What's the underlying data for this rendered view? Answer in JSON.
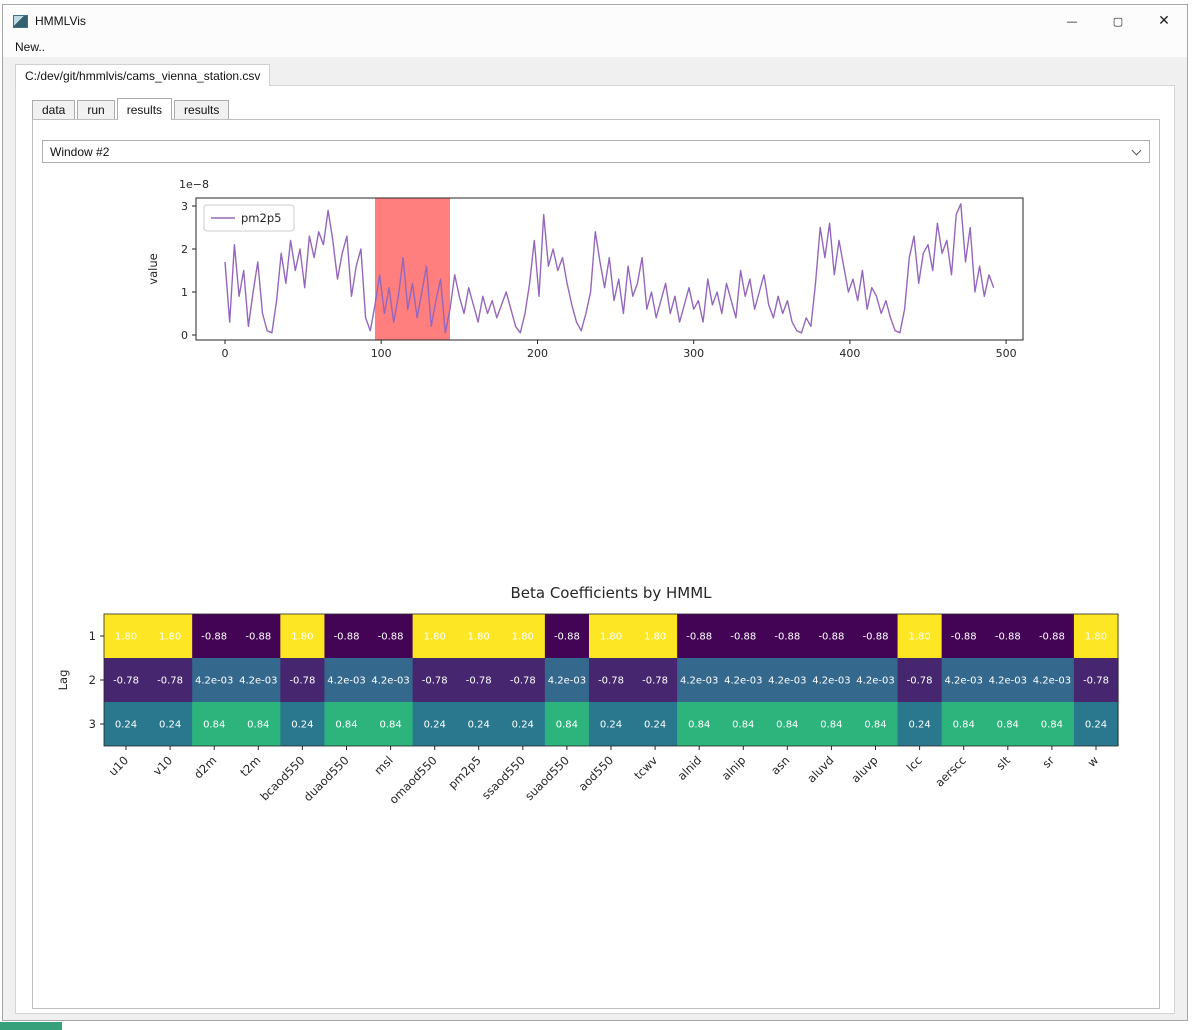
{
  "window": {
    "title": "HMMLVis",
    "controls": {
      "minimize": "—",
      "maximize": "▢",
      "close": "✕"
    }
  },
  "menu": {
    "items": [
      {
        "label": "New.."
      }
    ]
  },
  "file_tabs": [
    {
      "label": "C:/dev/git/hmmlvis/cams_vienna_station.csv",
      "active": true
    }
  ],
  "subtabs": [
    {
      "label": "data",
      "active": false
    },
    {
      "label": "run",
      "active": false
    },
    {
      "label": "results",
      "active": true
    },
    {
      "label": "results",
      "active": false
    }
  ],
  "window_selector": {
    "value": "Window #2"
  },
  "chart_data": [
    {
      "type": "line",
      "title": "",
      "xlabel": "",
      "ylabel": "value",
      "y_offset_label": "1e−8",
      "x_ticks": [
        0,
        100,
        200,
        300,
        400,
        500
      ],
      "y_ticks": [
        0,
        1,
        2,
        3
      ],
      "xlim": [
        -24,
        514
      ],
      "ylim": [
        -0.12,
        3.19
      ],
      "grid": false,
      "legend_position": "upper left",
      "highlight_span": {
        "x0": 96,
        "x1": 144,
        "color": "#ff0000",
        "opacity": 0.5
      },
      "series": [
        {
          "name": "pm2p5",
          "color": "#9467bd",
          "x_start": 0,
          "x_step": 3,
          "values": [
            1.7,
            0.3,
            2.1,
            0.9,
            1.5,
            0.2,
            1.0,
            1.7,
            0.5,
            0.1,
            0.05,
            0.8,
            1.9,
            1.2,
            2.2,
            1.5,
            2.0,
            1.1,
            2.3,
            1.8,
            2.4,
            2.1,
            2.9,
            2.2,
            1.3,
            1.9,
            2.3,
            0.9,
            1.6,
            2.0,
            0.4,
            0.1,
            0.7,
            1.4,
            0.5,
            1.1,
            0.3,
            0.9,
            1.8,
            0.6,
            1.2,
            0.4,
            1.0,
            1.6,
            0.2,
            0.8,
            1.3,
            0.05,
            0.6,
            1.4,
            0.9,
            0.5,
            1.1,
            0.7,
            0.3,
            0.9,
            0.5,
            0.8,
            0.4,
            0.7,
            1.0,
            0.6,
            0.2,
            0.05,
            0.5,
            1.2,
            2.2,
            0.9,
            2.8,
            1.6,
            2.0,
            1.5,
            1.8,
            1.2,
            0.7,
            0.3,
            0.1,
            0.5,
            1.0,
            2.4,
            1.7,
            1.1,
            1.8,
            0.8,
            1.3,
            0.5,
            1.6,
            0.9,
            1.2,
            1.8,
            0.6,
            1.0,
            0.4,
            0.8,
            1.2,
            0.5,
            0.9,
            0.3,
            0.7,
            1.1,
            0.6,
            0.8,
            0.3,
            1.3,
            0.7,
            1.0,
            0.5,
            1.2,
            0.8,
            0.4,
            1.5,
            0.9,
            1.3,
            0.6,
            1.0,
            1.4,
            0.7,
            0.4,
            0.9,
            0.5,
            0.8,
            0.3,
            0.1,
            0.05,
            0.4,
            0.2,
            1.2,
            2.5,
            1.8,
            2.6,
            1.4,
            2.2,
            1.6,
            1.0,
            1.3,
            0.8,
            1.5,
            0.6,
            1.1,
            0.9,
            0.5,
            0.8,
            0.4,
            0.1,
            0.05,
            0.6,
            1.8,
            2.3,
            1.2,
            1.9,
            2.1,
            1.5,
            2.6,
            1.9,
            2.2,
            1.4,
            2.8,
            3.05,
            1.7,
            2.5,
            1.0,
            1.6,
            0.9,
            1.4,
            1.1
          ]
        }
      ]
    },
    {
      "type": "heatmap",
      "title": "Beta Coefficients by HMML",
      "ylabel": "Lag",
      "row_labels": [
        "1",
        "2",
        "3"
      ],
      "columns": [
        "u10",
        "v10",
        "d2m",
        "t2m",
        "bcaod550",
        "duaod550",
        "msl",
        "omaod550",
        "pm2p5",
        "ssaod550",
        "suaod550",
        "aod550",
        "tcwv",
        "alnid",
        "alnip",
        "asn",
        "aluvd",
        "aluvp",
        "lcc",
        "aerscc",
        "slt",
        "sr",
        "w"
      ],
      "cells": [
        [
          "1.80",
          "1.80",
          "-0.88",
          "-0.88",
          "1.80",
          "-0.88",
          "-0.88",
          "1.80",
          "1.80",
          "1.80",
          "-0.88",
          "1.80",
          "1.80",
          "-0.88",
          "-0.88",
          "-0.88",
          "-0.88",
          "-0.88",
          "1.80",
          "-0.88",
          "-0.88",
          "-0.88",
          "1.80"
        ],
        [
          "-0.78",
          "-0.78",
          "4.2e-03",
          "4.2e-03",
          "-0.78",
          "4.2e-03",
          "4.2e-03",
          "-0.78",
          "-0.78",
          "-0.78",
          "4.2e-03",
          "-0.78",
          "-0.78",
          "4.2e-03",
          "4.2e-03",
          "4.2e-03",
          "4.2e-03",
          "4.2e-03",
          "-0.78",
          "4.2e-03",
          "4.2e-03",
          "4.2e-03",
          "-0.78"
        ],
        [
          "0.24",
          "0.24",
          "0.84",
          "0.84",
          "0.24",
          "0.84",
          "0.84",
          "0.24",
          "0.24",
          "0.24",
          "0.84",
          "0.24",
          "0.24",
          "0.84",
          "0.84",
          "0.84",
          "0.84",
          "0.84",
          "0.24",
          "0.84",
          "0.84",
          "0.84",
          "0.24"
        ]
      ],
      "palette": {
        "1.80": "#fde725",
        "-0.88": "#440456",
        "-0.78": "#46266f",
        "4.2e-03": "#35688d",
        "0.24": "#2a788e",
        "0.84": "#2db47d"
      },
      "text_color": "#ffffff",
      "colormap": "viridis"
    }
  ]
}
